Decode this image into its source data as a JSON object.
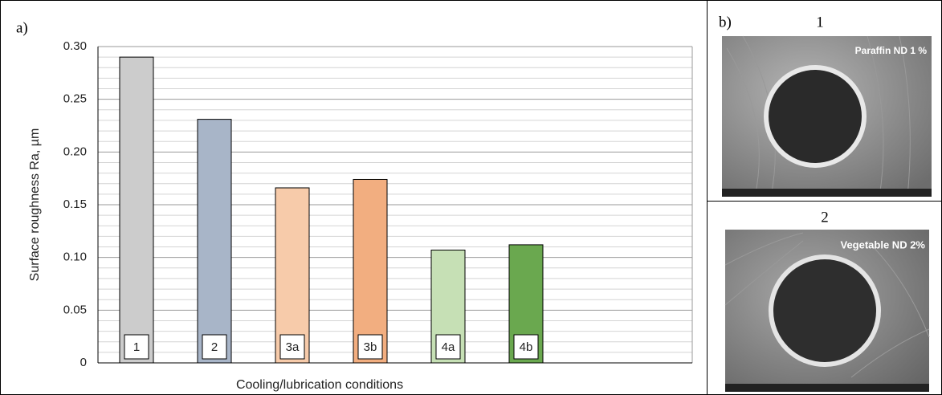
{
  "panel_a": {
    "label": "a)"
  },
  "chart_data": {
    "type": "bar",
    "y_label": "Surface roughness Ra, µm",
    "x_label": "Cooling/lubrication conditions",
    "categories": [
      "1",
      "2",
      "3a",
      "3b",
      "4a",
      "4b"
    ],
    "values": [
      0.29,
      0.231,
      0.166,
      0.174,
      0.107,
      0.112
    ],
    "colors": [
      "#cccccc",
      "#a8b5c8",
      "#f7cbaa",
      "#f2ae80",
      "#c6e0b5",
      "#6aa84f"
    ],
    "ylim": [
      0,
      0.3
    ],
    "yticks": [
      0,
      {
        "value": 0.05,
        "label": "0.05"
      },
      {
        "value": 0.1,
        "label": "0.10"
      },
      {
        "value": 0.15,
        "label": "0.15"
      },
      {
        "value": 0.2,
        "label": "0.20"
      },
      {
        "value": 0.25,
        "label": "0.25"
      },
      {
        "value": 0.3,
        "label": "0.30"
      }
    ],
    "grid": true
  },
  "panel_b": {
    "label": "b)",
    "images": [
      {
        "number": "1",
        "caption": "Paraffin ND 1 %"
      },
      {
        "number": "2",
        "caption": "Vegetable ND 2%"
      }
    ]
  }
}
